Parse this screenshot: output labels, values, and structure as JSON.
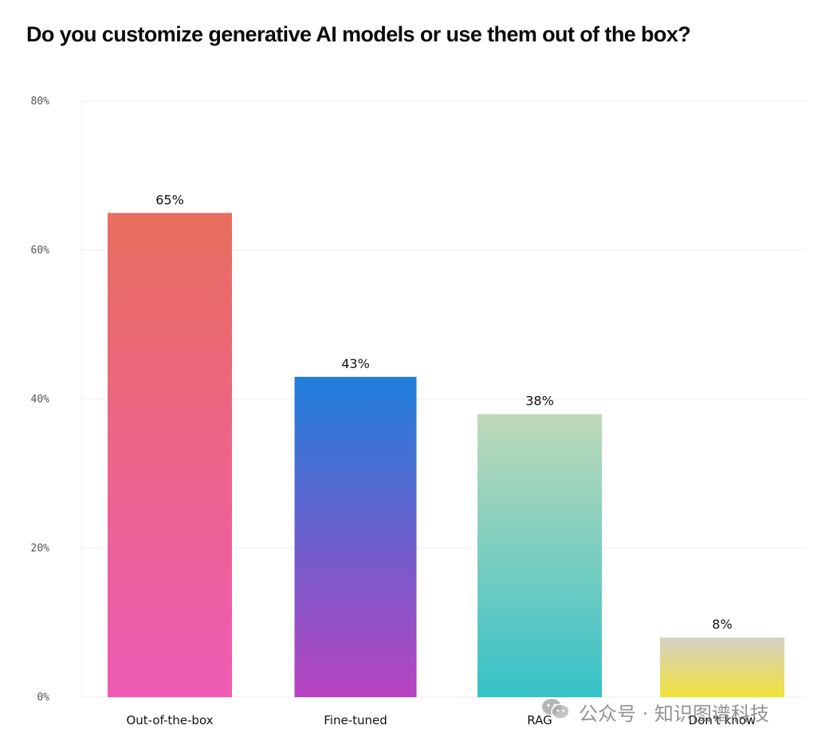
{
  "title": "Do you customize generative AI models or use them out of the box?",
  "chart_data": {
    "type": "bar",
    "title": "Do you customize generative AI models or use them out of the box?",
    "categories": [
      "Out-of-the-box",
      "Fine-tuned",
      "RAG",
      "Don't know"
    ],
    "values": [
      65,
      43,
      38,
      8
    ],
    "data_labels": [
      "65%",
      "43%",
      "38%",
      "8%"
    ],
    "ylim": [
      0,
      80
    ],
    "yticks": [
      0,
      20,
      40,
      60,
      80
    ],
    "ytick_labels": [
      "0%",
      "20%",
      "40%",
      "60%",
      "80%"
    ],
    "grid": true,
    "bar_gradients": [
      {
        "top": "#e96e5e",
        "bottom": "#ee5bb4"
      },
      {
        "top": "#1f7fdb",
        "bottom": "#b742bf"
      },
      {
        "top": "#bfd9b8",
        "bottom": "#36c2c8"
      },
      {
        "top": "#d4d0c6",
        "bottom": "#f0e23a"
      }
    ]
  },
  "watermark": {
    "text": "公众号 · 知识图谱科技",
    "icon": "wechat-icon"
  }
}
